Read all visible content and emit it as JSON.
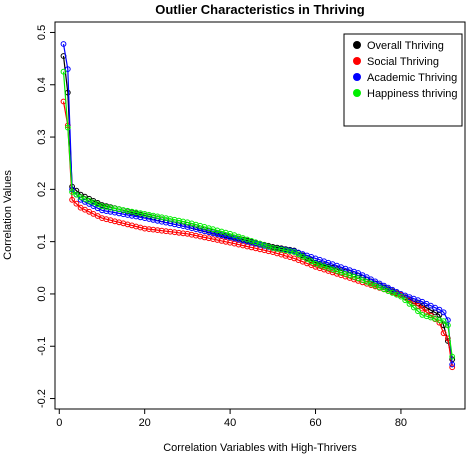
{
  "chart_data": {
    "type": "line",
    "title": "Outlier Characteristics in Thriving",
    "xlabel": "Correlation Variables with High-Thrivers",
    "ylabel": "Correlation Values",
    "xlim": [
      -1,
      95
    ],
    "ylim": [
      -0.22,
      0.52
    ],
    "xticks": [
      0,
      20,
      40,
      60,
      80
    ],
    "yticks": [
      -0.2,
      -0.1,
      0.0,
      0.1,
      0.2,
      0.3,
      0.4,
      0.5
    ],
    "xtick_labels": [
      "0",
      "20",
      "40",
      "60",
      "80"
    ],
    "ytick_labels": [
      "-0.2",
      "-0.1",
      "0.0",
      "0.1",
      "0.2",
      "0.3",
      "0.4",
      "0.5"
    ],
    "grid": false,
    "legend_position": "top-right",
    "marker": "open-circle",
    "series": [
      {
        "name": "Overall Thriving",
        "color": "#000000",
        "points": [
          [
            1,
            0.455
          ],
          [
            2,
            0.385
          ],
          [
            3,
            0.205
          ],
          [
            5,
            0.19
          ],
          [
            10,
            0.17
          ],
          [
            20,
            0.15
          ],
          [
            30,
            0.132
          ],
          [
            40,
            0.11
          ],
          [
            50,
            0.09
          ],
          [
            55,
            0.083
          ],
          [
            60,
            0.06
          ],
          [
            70,
            0.035
          ],
          [
            80,
            -0.002
          ],
          [
            85,
            -0.022
          ],
          [
            89,
            -0.04
          ],
          [
            90,
            -0.06
          ],
          [
            91,
            -0.09
          ],
          [
            92,
            -0.125
          ]
        ]
      },
      {
        "name": "Social Thriving",
        "color": "#ff0000",
        "points": [
          [
            1,
            0.368
          ],
          [
            2,
            0.322
          ],
          [
            3,
            0.18
          ],
          [
            5,
            0.165
          ],
          [
            10,
            0.145
          ],
          [
            20,
            0.125
          ],
          [
            30,
            0.115
          ],
          [
            40,
            0.098
          ],
          [
            50,
            0.08
          ],
          [
            55,
            0.068
          ],
          [
            60,
            0.052
          ],
          [
            70,
            0.025
          ],
          [
            80,
            -0.002
          ],
          [
            85,
            -0.028
          ],
          [
            89,
            -0.055
          ],
          [
            90,
            -0.075
          ],
          [
            91,
            -0.085
          ],
          [
            92,
            -0.14
          ]
        ]
      },
      {
        "name": "Academic Thriving",
        "color": "#0000ff",
        "points": [
          [
            1,
            0.478
          ],
          [
            2,
            0.43
          ],
          [
            3,
            0.2
          ],
          [
            5,
            0.18
          ],
          [
            10,
            0.16
          ],
          [
            20,
            0.145
          ],
          [
            30,
            0.128
          ],
          [
            40,
            0.108
          ],
          [
            50,
            0.088
          ],
          [
            55,
            0.082
          ],
          [
            60,
            0.068
          ],
          [
            70,
            0.04
          ],
          [
            80,
            0.0
          ],
          [
            85,
            -0.015
          ],
          [
            89,
            -0.03
          ],
          [
            90,
            -0.035
          ],
          [
            91,
            -0.05
          ],
          [
            92,
            -0.135
          ]
        ]
      },
      {
        "name": "Happiness thriving",
        "color": "#00ee00",
        "points": [
          [
            1,
            0.425
          ],
          [
            2,
            0.318
          ],
          [
            3,
            0.195
          ],
          [
            5,
            0.185
          ],
          [
            10,
            0.168
          ],
          [
            20,
            0.153
          ],
          [
            30,
            0.137
          ],
          [
            40,
            0.115
          ],
          [
            50,
            0.088
          ],
          [
            55,
            0.08
          ],
          [
            60,
            0.058
          ],
          [
            70,
            0.03
          ],
          [
            80,
            -0.005
          ],
          [
            85,
            -0.04
          ],
          [
            89,
            -0.05
          ],
          [
            90,
            -0.052
          ],
          [
            91,
            -0.06
          ],
          [
            92,
            -0.12
          ]
        ]
      }
    ]
  }
}
